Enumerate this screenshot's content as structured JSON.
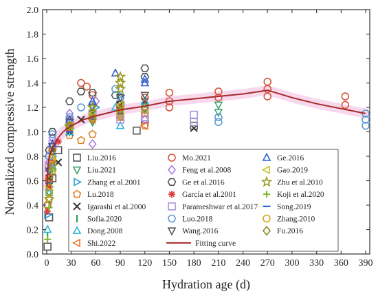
{
  "chart_data": {
    "type": "scatter",
    "xlabel": "Hydration age (d)",
    "ylabel": "Normalized compressive strength",
    "xlim": [
      -5,
      395
    ],
    "ylim": [
      0,
      2.0
    ],
    "xticks": [
      0,
      30,
      60,
      90,
      120,
      150,
      180,
      210,
      240,
      270,
      300,
      330,
      360,
      390
    ],
    "yticks": [
      0.0,
      0.2,
      0.4,
      0.6,
      0.8,
      1.0,
      1.2,
      1.4,
      1.6,
      1.8,
      2.0
    ],
    "grid": false,
    "legend_placement": "center",
    "series": [
      {
        "name": "Liu.2016",
        "marker": "square",
        "color": "#555555",
        "points": [
          [
            1,
            0.06
          ],
          [
            3,
            0.3
          ],
          [
            7,
            0.62
          ],
          [
            14,
            0.85
          ],
          [
            28,
            1.05
          ],
          [
            56,
            1.15
          ],
          [
            90,
            1.22
          ],
          [
            110,
            1.01
          ],
          [
            120,
            1.1
          ],
          [
            180,
            1.05
          ]
        ]
      },
      {
        "name": "Liu.2021",
        "marker": "triangle-down",
        "color": "#3aa36a",
        "points": [
          [
            3,
            0.5
          ],
          [
            7,
            0.74
          ],
          [
            28,
            1.0
          ],
          [
            56,
            1.08
          ],
          [
            90,
            1.12
          ],
          [
            120,
            1.18
          ],
          [
            210,
            1.22
          ],
          [
            210,
            1.16
          ]
        ]
      },
      {
        "name": "Zhang et al.2001",
        "marker": "triangle-right",
        "color": "#2e9fd6",
        "points": [
          [
            1,
            0.32
          ],
          [
            3,
            0.55
          ],
          [
            7,
            0.8
          ],
          [
            28,
            1.05
          ],
          [
            60,
            1.2
          ],
          [
            90,
            1.3
          ]
        ]
      },
      {
        "name": "Lu.2018",
        "marker": "pentagon",
        "color": "#e0832a",
        "points": [
          [
            3,
            0.45
          ],
          [
            7,
            0.68
          ],
          [
            28,
            0.97
          ],
          [
            42,
            0.93
          ],
          [
            56,
            0.98
          ],
          [
            90,
            1.12
          ],
          [
            120,
            1.05
          ],
          [
            120,
            1.15
          ]
        ]
      },
      {
        "name": "Igarashi et al.2000",
        "marker": "x",
        "color": "#333333",
        "points": [
          [
            3,
            0.62
          ],
          [
            7,
            0.85
          ],
          [
            14,
            0.75
          ],
          [
            28,
            1.0
          ],
          [
            42,
            1.1
          ],
          [
            56,
            1.15
          ],
          [
            90,
            1.22
          ],
          [
            120,
            1.25
          ],
          [
            180,
            1.03
          ]
        ]
      },
      {
        "name": "Sofia.2020",
        "marker": "vbar",
        "color": "#2e9e57",
        "points": [
          [
            1,
            0.15
          ],
          [
            3,
            0.4
          ],
          [
            7,
            0.65
          ],
          [
            28,
            1.02
          ],
          [
            56,
            1.12
          ],
          [
            90,
            1.15
          ]
        ]
      },
      {
        "name": "Dong.2008",
        "marker": "triangle-up",
        "color": "#29b7d9",
        "points": [
          [
            1,
            0.2
          ],
          [
            3,
            0.5
          ],
          [
            7,
            0.72
          ],
          [
            28,
            1.0
          ],
          [
            56,
            1.15
          ],
          [
            84,
            1.2
          ],
          [
            90,
            1.05
          ],
          [
            120,
            1.25
          ]
        ]
      },
      {
        "name": "Shi.2022",
        "marker": "triangle-left",
        "color": "#e8792d",
        "points": [
          [
            3,
            0.62
          ],
          [
            7,
            0.8
          ],
          [
            28,
            1.02
          ],
          [
            56,
            1.1
          ],
          [
            90,
            1.12
          ],
          [
            120,
            1.05
          ]
        ]
      },
      {
        "name": "Mo.2021",
        "marker": "circle",
        "color": "#d6553a",
        "points": [
          [
            1,
            0.4
          ],
          [
            3,
            0.62
          ],
          [
            7,
            0.85
          ],
          [
            28,
            1.1
          ],
          [
            42,
            1.4
          ],
          [
            49,
            1.37
          ],
          [
            56,
            1.3
          ],
          [
            90,
            1.2
          ],
          [
            120,
            1.28
          ],
          [
            150,
            1.32
          ],
          [
            150,
            1.25
          ],
          [
            150,
            1.2
          ],
          [
            210,
            1.33
          ],
          [
            210,
            1.28
          ],
          [
            270,
            1.41
          ],
          [
            270,
            1.35
          ],
          [
            270,
            1.29
          ],
          [
            365,
            1.29
          ],
          [
            365,
            1.22
          ]
        ]
      },
      {
        "name": "Feng et al.2008",
        "marker": "diamond",
        "color": "#a97be0",
        "points": [
          [
            3,
            0.75
          ],
          [
            7,
            0.95
          ],
          [
            28,
            1.15
          ],
          [
            56,
            0.9
          ],
          [
            60,
            1.25
          ],
          [
            90,
            1.15
          ],
          [
            120,
            1.1
          ]
        ]
      },
      {
        "name": "Ge et al.2016",
        "marker": "hexagon",
        "color": "#555555",
        "points": [
          [
            3,
            0.85
          ],
          [
            7,
            1.0
          ],
          [
            28,
            1.25
          ],
          [
            42,
            1.33
          ],
          [
            56,
            1.32
          ],
          [
            84,
            1.3
          ],
          [
            120,
            1.52
          ],
          [
            120,
            1.45
          ]
        ]
      },
      {
        "name": "García et al.2001",
        "marker": "asterisk",
        "color": "#e03a3a",
        "points": [
          [
            1,
            0.35
          ],
          [
            3,
            0.55
          ],
          [
            7,
            0.75
          ],
          [
            14,
            0.92
          ],
          [
            28,
            1.02
          ],
          [
            56,
            1.12
          ],
          [
            90,
            1.18
          ]
        ]
      },
      {
        "name": "Parameshwar et al.2017",
        "marker": "square",
        "color": "#a992dc",
        "points": [
          [
            3,
            0.72
          ],
          [
            7,
            0.9
          ],
          [
            28,
            1.08
          ],
          [
            56,
            1.15
          ],
          [
            90,
            1.1
          ],
          [
            120,
            1.12
          ],
          [
            180,
            1.08
          ],
          [
            180,
            1.14
          ]
        ]
      },
      {
        "name": "Luo.2018",
        "marker": "circle",
        "color": "#5a9bd6",
        "points": [
          [
            3,
            0.8
          ],
          [
            7,
            0.98
          ],
          [
            28,
            1.12
          ],
          [
            42,
            1.2
          ],
          [
            56,
            1.22
          ],
          [
            84,
            1.35
          ],
          [
            90,
            1.28
          ],
          [
            120,
            1.2
          ],
          [
            210,
            1.12
          ],
          [
            210,
            1.08
          ],
          [
            390,
            1.05
          ],
          [
            390,
            1.1
          ],
          [
            390,
            1.15
          ]
        ]
      },
      {
        "name": "Wang.2016",
        "marker": "triangle-down",
        "color": "#555555",
        "points": [
          [
            3,
            0.68
          ],
          [
            7,
            0.88
          ],
          [
            28,
            1.08
          ],
          [
            56,
            1.2
          ],
          [
            90,
            1.28
          ],
          [
            120,
            1.3
          ]
        ]
      },
      {
        "name": "Ge.2016",
        "marker": "triangle-up",
        "color": "#2e5bd6",
        "points": [
          [
            3,
            0.7
          ],
          [
            7,
            0.9
          ],
          [
            28,
            1.1
          ],
          [
            56,
            1.25
          ],
          [
            84,
            1.48
          ],
          [
            120,
            1.43
          ],
          [
            120,
            1.4
          ]
        ]
      },
      {
        "name": "Gao.2019",
        "marker": "triangle-left",
        "color": "#c8c020",
        "points": [
          [
            3,
            0.55
          ],
          [
            7,
            0.8
          ],
          [
            28,
            1.05
          ],
          [
            56,
            1.15
          ],
          [
            90,
            1.22
          ]
        ]
      },
      {
        "name": "Zhu et al.2010",
        "marker": "star",
        "color": "#9a9a1e",
        "points": [
          [
            3,
            0.45
          ],
          [
            7,
            0.72
          ],
          [
            28,
            1.05
          ],
          [
            56,
            1.2
          ],
          [
            90,
            1.45
          ],
          [
            90,
            1.4
          ],
          [
            90,
            1.35
          ]
        ]
      },
      {
        "name": "Koji et al.2020",
        "marker": "plus",
        "color": "#7ab82a",
        "points": [
          [
            1,
            0.12
          ],
          [
            3,
            0.38
          ],
          [
            7,
            0.68
          ],
          [
            28,
            1.02
          ],
          [
            56,
            1.12
          ],
          [
            90,
            1.18
          ]
        ]
      },
      {
        "name": "Song.2019",
        "marker": "hbar",
        "color": "#2e5bd6",
        "points": [
          [
            3,
            0.58
          ],
          [
            7,
            0.82
          ],
          [
            28,
            1.0
          ],
          [
            56,
            1.1
          ],
          [
            90,
            1.15
          ]
        ]
      },
      {
        "name": "Zhang.2010",
        "marker": "circle",
        "color": "#d4a514",
        "points": [
          [
            3,
            0.5
          ],
          [
            7,
            0.78
          ],
          [
            28,
            1.05
          ],
          [
            56,
            1.12
          ],
          [
            90,
            1.15
          ],
          [
            120,
            1.18
          ]
        ]
      },
      {
        "name": "Fu.2016",
        "marker": "diamond",
        "color": "#8a8a1e",
        "points": [
          [
            3,
            0.6
          ],
          [
            7,
            0.85
          ],
          [
            28,
            1.05
          ],
          [
            56,
            1.1
          ],
          [
            90,
            1.18
          ],
          [
            120,
            1.2
          ]
        ]
      }
    ],
    "fit": {
      "name": "Fitting curve",
      "color": "#a52a2a",
      "points": [
        [
          0.5,
          0.55
        ],
        [
          1,
          0.66
        ],
        [
          2,
          0.74
        ],
        [
          3,
          0.79
        ],
        [
          5,
          0.84
        ],
        [
          7,
          0.87
        ],
        [
          10,
          0.91
        ],
        [
          15,
          0.96
        ],
        [
          20,
          1.0
        ],
        [
          30,
          1.05
        ],
        [
          45,
          1.1
        ],
        [
          60,
          1.13
        ],
        [
          90,
          1.18
        ],
        [
          120,
          1.21
        ],
        [
          150,
          1.25
        ],
        [
          180,
          1.27
        ],
        [
          210,
          1.29
        ],
        [
          240,
          1.31
        ],
        [
          270,
          1.34
        ],
        [
          300,
          1.28
        ],
        [
          330,
          1.23
        ],
        [
          360,
          1.19
        ],
        [
          390,
          1.15
        ]
      ]
    }
  }
}
